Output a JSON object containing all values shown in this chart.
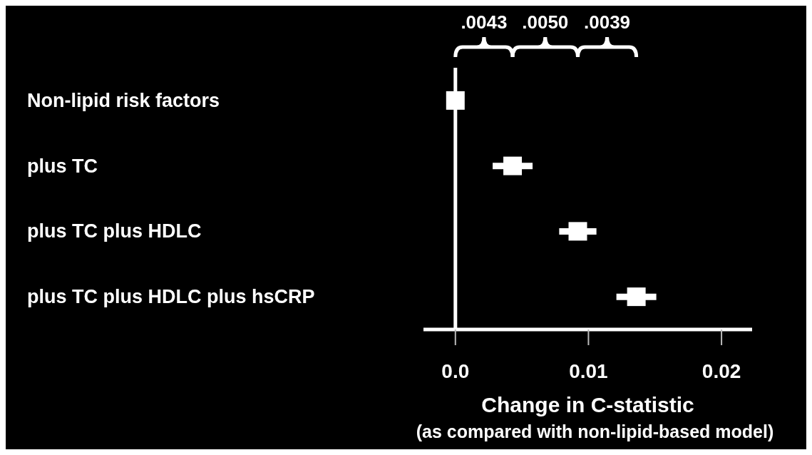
{
  "chart_data": {
    "type": "scatter",
    "orientation": "horizontal",
    "xlabel": "Change in C-statistic",
    "categories": [
      "Non-lipid risk factors",
      "plus TC",
      "plus TC plus HDLC",
      "plus TC plus HDLC plus hsCRP"
    ],
    "values": [
      0,
      0.0043,
      0.0092,
      0.0136
    ],
    "errors": [
      null,
      0.0015,
      0.0014,
      0.0015
    ],
    "color": "#ffffff",
    "marker": "square",
    "xlim": [
      -0.0024,
      0.0223
    ],
    "xticks": [
      {
        "value": 0,
        "label": "0.0"
      },
      0.01,
      0.02
    ],
    "ref_lines": [
      {
        "axis": "x",
        "value": 0,
        "color": "#ffffff"
      }
    ],
    "annotations": [
      ".0043",
      ".0050",
      ".0039",
      "(as compared with non-lipid-based model)"
    ]
  }
}
